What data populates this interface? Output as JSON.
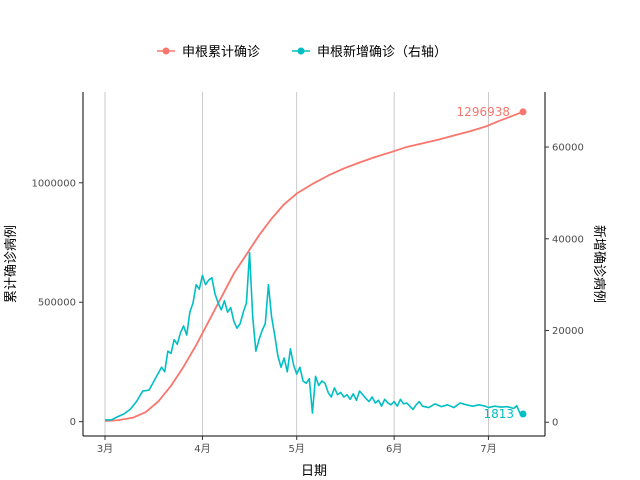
{
  "chart_data": {
    "type": "line",
    "xlabel": "日期",
    "ylabel_left": "累计确诊病例",
    "ylabel_right": "新增确诊病例",
    "legend_position": "top",
    "grid": "vertical major only",
    "x_domain": [
      "2020-03-01",
      "2020-07-12"
    ],
    "x_ticks": [
      {
        "date": "2020-03-01",
        "label": "3月"
      },
      {
        "date": "2020-04-01",
        "label": "4月"
      },
      {
        "date": "2020-05-01",
        "label": "5月"
      },
      {
        "date": "2020-06-01",
        "label": "6月"
      },
      {
        "date": "2020-07-01",
        "label": "7月"
      }
    ],
    "y_left": {
      "ylim": [
        -60000,
        1380000
      ],
      "ticks": [
        0,
        500000,
        1000000
      ],
      "tick_labels": [
        "0",
        "500000",
        "1000000"
      ]
    },
    "y_right": {
      "ylim": [
        -3000,
        72000
      ],
      "ticks": [
        0,
        20000,
        40000,
        60000
      ],
      "tick_labels": [
        "0",
        "20000",
        "40000",
        "60000"
      ]
    },
    "colors": {
      "cumulative": "#F8766D",
      "daily": "#00BFC4"
    },
    "series": [
      {
        "name": "申根累计确诊",
        "axis": "left",
        "color": "#F8766D",
        "points": [
          [
            "2020-03-01",
            3000
          ],
          [
            "2020-03-05",
            6000
          ],
          [
            "2020-03-10",
            17000
          ],
          [
            "2020-03-14",
            40000
          ],
          [
            "2020-03-18",
            85000
          ],
          [
            "2020-03-22",
            150000
          ],
          [
            "2020-03-26",
            230000
          ],
          [
            "2020-03-30",
            320000
          ],
          [
            "2020-04-03",
            420000
          ],
          [
            "2020-04-07",
            520000
          ],
          [
            "2020-04-11",
            620000
          ],
          [
            "2020-04-15",
            700000
          ],
          [
            "2020-04-19",
            780000
          ],
          [
            "2020-04-23",
            850000
          ],
          [
            "2020-04-27",
            910000
          ],
          [
            "2020-05-01",
            955000
          ],
          [
            "2020-05-06",
            995000
          ],
          [
            "2020-05-11",
            1030000
          ],
          [
            "2020-05-16",
            1060000
          ],
          [
            "2020-05-21",
            1085000
          ],
          [
            "2020-05-26",
            1108000
          ],
          [
            "2020-05-31",
            1128000
          ],
          [
            "2020-06-05",
            1150000
          ],
          [
            "2020-06-10",
            1165000
          ],
          [
            "2020-06-15",
            1180000
          ],
          [
            "2020-06-20",
            1198000
          ],
          [
            "2020-06-25",
            1215000
          ],
          [
            "2020-06-30",
            1235000
          ],
          [
            "2020-07-05",
            1262000
          ],
          [
            "2020-07-12",
            1296938
          ]
        ],
        "end_label": "1296938"
      },
      {
        "name": "申根新增确诊（右轴）",
        "axis": "right",
        "color": "#00BFC4",
        "points": [
          [
            "2020-03-01",
            500
          ],
          [
            "2020-03-03",
            500
          ],
          [
            "2020-03-05",
            1200
          ],
          [
            "2020-03-07",
            1800
          ],
          [
            "2020-03-09",
            2800
          ],
          [
            "2020-03-11",
            4500
          ],
          [
            "2020-03-13",
            6800
          ],
          [
            "2020-03-15",
            7000
          ],
          [
            "2020-03-17",
            9500
          ],
          [
            "2020-03-19",
            12000
          ],
          [
            "2020-03-20",
            11000
          ],
          [
            "2020-03-21",
            15500
          ],
          [
            "2020-03-22",
            15000
          ],
          [
            "2020-03-23",
            18000
          ],
          [
            "2020-03-24",
            17000
          ],
          [
            "2020-03-25",
            19500
          ],
          [
            "2020-03-26",
            21000
          ],
          [
            "2020-03-27",
            19000
          ],
          [
            "2020-03-28",
            24000
          ],
          [
            "2020-03-29",
            26000
          ],
          [
            "2020-03-30",
            30000
          ],
          [
            "2020-03-31",
            29000
          ],
          [
            "2020-04-01",
            32000
          ],
          [
            "2020-04-02",
            30000
          ],
          [
            "2020-04-03",
            31000
          ],
          [
            "2020-04-04",
            31500
          ],
          [
            "2020-04-05",
            28000
          ],
          [
            "2020-04-06",
            26000
          ],
          [
            "2020-04-07",
            24500
          ],
          [
            "2020-04-08",
            26500
          ],
          [
            "2020-04-09",
            24000
          ],
          [
            "2020-04-10",
            25000
          ],
          [
            "2020-04-11",
            22000
          ],
          [
            "2020-04-12",
            20500
          ],
          [
            "2020-04-13",
            21500
          ],
          [
            "2020-04-14",
            24000
          ],
          [
            "2020-04-15",
            26000
          ],
          [
            "2020-04-16",
            37000
          ],
          [
            "2020-04-17",
            23000
          ],
          [
            "2020-04-18",
            15500
          ],
          [
            "2020-04-19",
            18000
          ],
          [
            "2020-04-20",
            20000
          ],
          [
            "2020-04-21",
            21500
          ],
          [
            "2020-04-22",
            30000
          ],
          [
            "2020-04-23",
            23000
          ],
          [
            "2020-04-24",
            19000
          ],
          [
            "2020-04-25",
            14500
          ],
          [
            "2020-04-26",
            12000
          ],
          [
            "2020-04-27",
            14000
          ],
          [
            "2020-04-28",
            11000
          ],
          [
            "2020-04-29",
            16000
          ],
          [
            "2020-04-30",
            12500
          ],
          [
            "2020-05-01",
            10500
          ],
          [
            "2020-05-02",
            12000
          ],
          [
            "2020-05-03",
            9000
          ],
          [
            "2020-05-04",
            8500
          ],
          [
            "2020-05-05",
            9500
          ],
          [
            "2020-05-06",
            2000
          ],
          [
            "2020-05-07",
            10000
          ],
          [
            "2020-05-08",
            8000
          ],
          [
            "2020-05-09",
            9000
          ],
          [
            "2020-05-10",
            8500
          ],
          [
            "2020-05-11",
            6500
          ],
          [
            "2020-05-12",
            5500
          ],
          [
            "2020-05-13",
            7500
          ],
          [
            "2020-05-14",
            6000
          ],
          [
            "2020-05-15",
            6500
          ],
          [
            "2020-05-16",
            5500
          ],
          [
            "2020-05-17",
            6000
          ],
          [
            "2020-05-18",
            5000
          ],
          [
            "2020-05-19",
            6200
          ],
          [
            "2020-05-20",
            4800
          ],
          [
            "2020-05-21",
            6800
          ],
          [
            "2020-05-22",
            6000
          ],
          [
            "2020-05-23",
            5200
          ],
          [
            "2020-05-24",
            4500
          ],
          [
            "2020-05-25",
            5500
          ],
          [
            "2020-05-26",
            4200
          ],
          [
            "2020-05-27",
            4800
          ],
          [
            "2020-05-28",
            3500
          ],
          [
            "2020-05-29",
            5000
          ],
          [
            "2020-05-30",
            4200
          ],
          [
            "2020-05-31",
            3800
          ],
          [
            "2020-06-01",
            4500
          ],
          [
            "2020-06-02",
            3500
          ],
          [
            "2020-06-03",
            5000
          ],
          [
            "2020-06-04",
            4000
          ],
          [
            "2020-06-05",
            4200
          ],
          [
            "2020-06-06",
            3500
          ],
          [
            "2020-06-07",
            2800
          ],
          [
            "2020-06-08",
            3800
          ],
          [
            "2020-06-09",
            4500
          ],
          [
            "2020-06-10",
            3500
          ],
          [
            "2020-06-12",
            3200
          ],
          [
            "2020-06-14",
            4000
          ],
          [
            "2020-06-16",
            3400
          ],
          [
            "2020-06-18",
            3800
          ],
          [
            "2020-06-20",
            3200
          ],
          [
            "2020-06-22",
            4200
          ],
          [
            "2020-06-24",
            3800
          ],
          [
            "2020-06-26",
            3500
          ],
          [
            "2020-06-28",
            3800
          ],
          [
            "2020-06-30",
            3500
          ],
          [
            "2020-07-01",
            3200
          ],
          [
            "2020-07-03",
            3500
          ],
          [
            "2020-07-05",
            3300
          ],
          [
            "2020-07-07",
            3400
          ],
          [
            "2020-07-09",
            3000
          ],
          [
            "2020-07-10",
            3600
          ],
          [
            "2020-07-11",
            2000
          ],
          [
            "2020-07-12",
            1800
          ]
        ],
        "end_label": "1813"
      }
    ]
  }
}
